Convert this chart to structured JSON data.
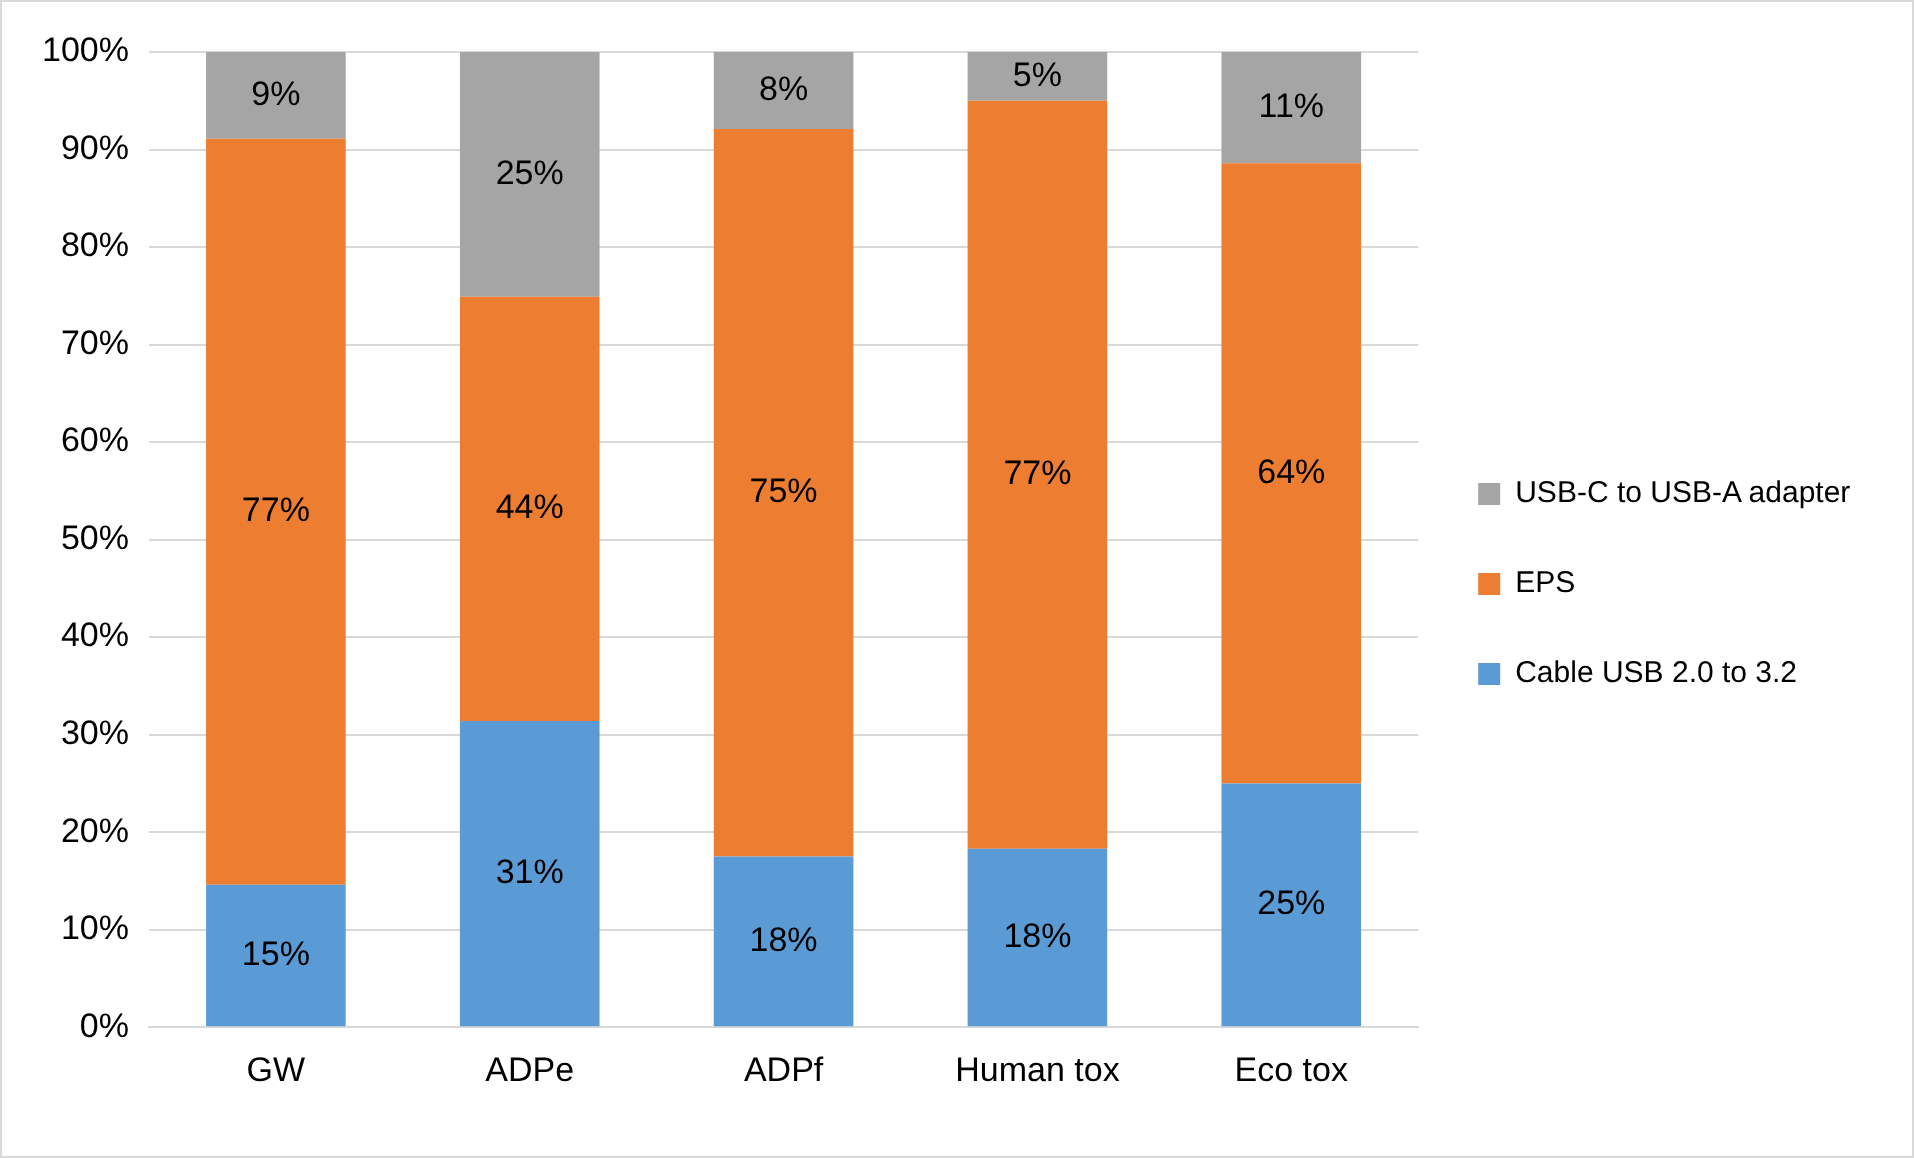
{
  "chart_data": {
    "type": "bar",
    "stacked": true,
    "categories": [
      "GW",
      "ADPe",
      "ADPf",
      "Human tox",
      "Eco tox"
    ],
    "series": [
      {
        "name": "Cable USB 2.0 to 3.2",
        "color": "#5b9bd5",
        "values": [
          14.6,
          31.4,
          17.5,
          18.3,
          25.0
        ],
        "value_labels": [
          "15%",
          "31%",
          "18%",
          "18%",
          "25%"
        ]
      },
      {
        "name": "EPS",
        "color": "#ed7d31",
        "values": [
          76.5,
          43.5,
          74.6,
          76.7,
          63.6
        ],
        "value_labels": [
          "77%",
          "44%",
          "75%",
          "77%",
          "64%"
        ]
      },
      {
        "name": "USB-C to USB-A adapter",
        "color": "#a5a5a5",
        "values": [
          8.9,
          25.1,
          7.9,
          5.0,
          11.4
        ],
        "value_labels": [
          "9%",
          "25%",
          "8%",
          "5%",
          "11%"
        ]
      }
    ],
    "ylim": [
      0,
      100
    ],
    "yticks": [
      {
        "value": 0,
        "label": "0%"
      },
      {
        "value": 10,
        "label": "10%"
      },
      {
        "value": 20,
        "label": "20%"
      },
      {
        "value": 30,
        "label": "30%"
      },
      {
        "value": 40,
        "label": "40%"
      },
      {
        "value": 50,
        "label": "50%"
      },
      {
        "value": 60,
        "label": "60%"
      },
      {
        "value": 70,
        "label": "70%"
      },
      {
        "value": 80,
        "label": "80%"
      },
      {
        "value": 90,
        "label": "90%"
      },
      {
        "value": 100,
        "label": "100%"
      }
    ],
    "grid": "y",
    "legend": "right"
  }
}
